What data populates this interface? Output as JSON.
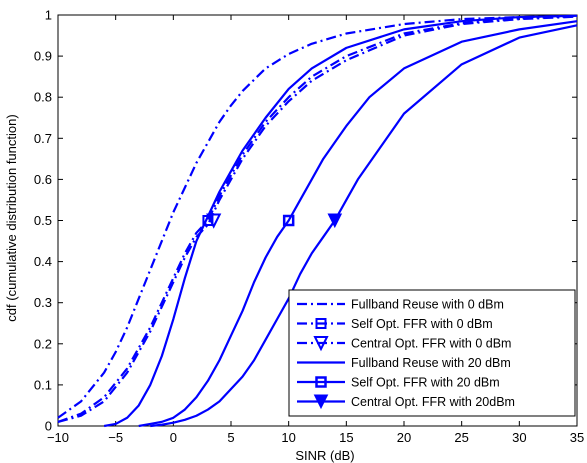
{
  "chart_data": {
    "type": "line",
    "xlabel": "SINR (dB)",
    "ylabel": "cdf (cumulative distribution function)",
    "xlim": [
      -10,
      35
    ],
    "ylim": [
      0,
      1
    ],
    "x_ticks": [
      -10,
      -5,
      0,
      5,
      10,
      15,
      20,
      25,
      30,
      35
    ],
    "y_ticks": [
      0,
      0.1,
      0.2,
      0.3,
      0.4,
      0.5,
      0.6,
      0.7,
      0.8,
      0.9,
      1
    ],
    "x_tick_labels": [
      "−10",
      "−5",
      "0",
      "5",
      "10",
      "15",
      "20",
      "25",
      "30",
      "35"
    ],
    "y_tick_labels": [
      "0",
      "0.1",
      "0.2",
      "0.3",
      "0.4",
      "0.5",
      "0.6",
      "0.7",
      "0.8",
      "0.9",
      "1"
    ],
    "grid": false,
    "legend_position": "bottom-right",
    "color": "#0000ff",
    "series": [
      {
        "name": "Fullband Reuse with 0 dBm",
        "style": "dashdot",
        "marker": "none",
        "x": [
          -10,
          -8,
          -6,
          -5,
          -4,
          -3,
          -2,
          -1,
          0,
          1,
          2,
          3,
          4,
          5,
          6,
          8,
          10,
          12,
          15,
          20,
          25,
          30,
          35
        ],
        "y": [
          0.02,
          0.06,
          0.13,
          0.18,
          0.24,
          0.31,
          0.38,
          0.45,
          0.52,
          0.58,
          0.64,
          0.69,
          0.74,
          0.78,
          0.815,
          0.87,
          0.905,
          0.93,
          0.955,
          0.978,
          0.99,
          0.995,
          0.998
        ]
      },
      {
        "name": "Self Opt. FFR with 0 dBm",
        "style": "dashdot",
        "marker": "square",
        "marker_points": [
          [
            3,
            0.5
          ]
        ],
        "x": [
          -10,
          -8,
          -6,
          -4,
          -3,
          -2,
          -1,
          0,
          1,
          2,
          3,
          4,
          5,
          6,
          8,
          10,
          12,
          15,
          20,
          25,
          30,
          35
        ],
        "y": [
          0.01,
          0.03,
          0.07,
          0.14,
          0.19,
          0.24,
          0.3,
          0.36,
          0.42,
          0.47,
          0.5,
          0.56,
          0.61,
          0.66,
          0.74,
          0.8,
          0.85,
          0.9,
          0.955,
          0.98,
          0.992,
          0.997
        ]
      },
      {
        "name": "Central Opt. FFR with 0 dBm",
        "style": "dashdot",
        "marker": "triangle-down",
        "marker_points": [
          [
            3.5,
            0.5
          ]
        ],
        "x": [
          -10,
          -8,
          -6,
          -4,
          -3,
          -2,
          -1,
          0,
          1,
          2,
          3,
          4,
          5,
          6,
          8,
          10,
          12,
          15,
          20,
          25,
          30,
          35
        ],
        "y": [
          0.01,
          0.025,
          0.06,
          0.13,
          0.18,
          0.23,
          0.29,
          0.35,
          0.41,
          0.46,
          0.49,
          0.55,
          0.6,
          0.65,
          0.73,
          0.79,
          0.84,
          0.89,
          0.95,
          0.978,
          0.99,
          0.996
        ]
      },
      {
        "name": "Fullband Reuse with 20 dBm",
        "style": "solid",
        "marker": "none",
        "x": [
          -6,
          -5,
          -4,
          -3,
          -2,
          -1,
          0,
          1,
          2,
          3,
          4,
          5,
          6,
          8,
          10,
          12,
          15,
          20,
          25,
          30,
          35
        ],
        "y": [
          0.0,
          0.005,
          0.02,
          0.05,
          0.1,
          0.17,
          0.26,
          0.36,
          0.45,
          0.51,
          0.57,
          0.62,
          0.67,
          0.75,
          0.82,
          0.87,
          0.92,
          0.965,
          0.985,
          0.995,
          0.998
        ]
      },
      {
        "name": "Self Opt. FFR with 20 dBm",
        "style": "solid",
        "marker": "square",
        "marker_points": [
          [
            10,
            0.5
          ]
        ],
        "x": [
          -3,
          -2,
          -1,
          0,
          1,
          2,
          3,
          4,
          5,
          6,
          7,
          8,
          9,
          10,
          11,
          12,
          13,
          14,
          15,
          17,
          20,
          25,
          30,
          35
        ],
        "y": [
          0.0,
          0.005,
          0.01,
          0.02,
          0.04,
          0.07,
          0.11,
          0.16,
          0.22,
          0.28,
          0.35,
          0.41,
          0.46,
          0.5,
          0.55,
          0.6,
          0.65,
          0.69,
          0.73,
          0.8,
          0.87,
          0.935,
          0.965,
          0.985
        ]
      },
      {
        "name": "Central Opt. FFR with 20dBm",
        "style": "solid",
        "marker": "triangle-down",
        "marker_points": [
          [
            14,
            0.5
          ]
        ],
        "x": [
          -2,
          -1,
          0,
          1,
          2,
          3,
          4,
          5,
          6,
          7,
          8,
          9,
          10,
          11,
          12,
          13,
          14,
          15,
          16,
          18,
          20,
          25,
          30,
          35
        ],
        "y": [
          0.0,
          0.003,
          0.008,
          0.015,
          0.025,
          0.04,
          0.06,
          0.09,
          0.12,
          0.16,
          0.21,
          0.26,
          0.31,
          0.37,
          0.42,
          0.46,
          0.5,
          0.55,
          0.6,
          0.68,
          0.76,
          0.88,
          0.945,
          0.975
        ]
      }
    ]
  }
}
